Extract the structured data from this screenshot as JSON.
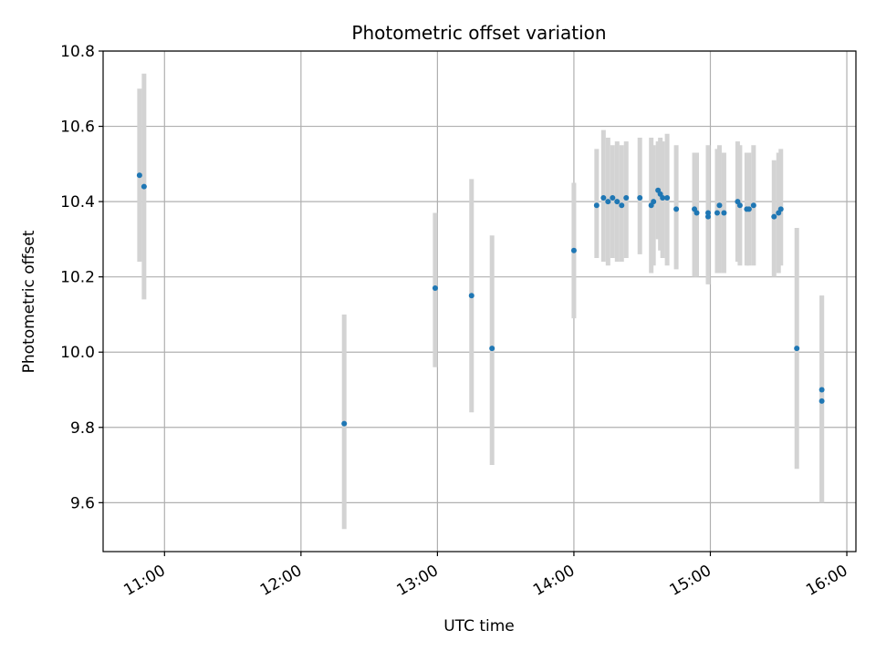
{
  "chart_data": {
    "type": "scatter",
    "title": "Photometric offset variation",
    "xlabel": "UTC time",
    "ylabel": "Photometric offset",
    "xlim": [
      "10:33",
      "16:04"
    ],
    "ylim": [
      9.47,
      10.8
    ],
    "x_ticks": [
      "11:00",
      "12:00",
      "13:00",
      "14:00",
      "15:00",
      "16:00"
    ],
    "y_ticks": [
      "9.6",
      "9.8",
      "10.0",
      "10.2",
      "10.4",
      "10.6",
      "10.8"
    ],
    "grid": true,
    "point_color": "#1f77b4",
    "errorbar_color": "#d3d3d3",
    "series": [
      {
        "points": [
          {
            "t": "10:49",
            "y": 10.47,
            "lo": 10.24,
            "hi": 10.7
          },
          {
            "t": "10:51",
            "y": 10.44,
            "lo": 10.14,
            "hi": 10.74
          },
          {
            "t": "12:19",
            "y": 9.81,
            "lo": 9.53,
            "hi": 10.1
          },
          {
            "t": "12:59",
            "y": 10.17,
            "lo": 9.96,
            "hi": 10.37
          },
          {
            "t": "13:15",
            "y": 10.15,
            "lo": 9.84,
            "hi": 10.46
          },
          {
            "t": "13:24",
            "y": 10.01,
            "lo": 9.7,
            "hi": 10.31
          },
          {
            "t": "14:00",
            "y": 10.27,
            "lo": 10.09,
            "hi": 10.45
          },
          {
            "t": "14:10",
            "y": 10.39,
            "lo": 10.25,
            "hi": 10.54
          },
          {
            "t": "14:13",
            "y": 10.41,
            "lo": 10.24,
            "hi": 10.59
          },
          {
            "t": "14:15",
            "y": 10.4,
            "lo": 10.23,
            "hi": 10.57
          },
          {
            "t": "14:17",
            "y": 10.41,
            "lo": 10.25,
            "hi": 10.55
          },
          {
            "t": "14:19",
            "y": 10.4,
            "lo": 10.24,
            "hi": 10.56
          },
          {
            "t": "14:21",
            "y": 10.39,
            "lo": 10.24,
            "hi": 10.55
          },
          {
            "t": "14:23",
            "y": 10.41,
            "lo": 10.25,
            "hi": 10.56
          },
          {
            "t": "14:29",
            "y": 10.41,
            "lo": 10.26,
            "hi": 10.57
          },
          {
            "t": "14:34",
            "y": 10.39,
            "lo": 10.21,
            "hi": 10.57
          },
          {
            "t": "14:35",
            "y": 10.4,
            "lo": 10.23,
            "hi": 10.55
          },
          {
            "t": "14:37",
            "y": 10.43,
            "lo": 10.3,
            "hi": 10.56
          },
          {
            "t": "14:38",
            "y": 10.42,
            "lo": 10.27,
            "hi": 10.57
          },
          {
            "t": "14:39",
            "y": 10.41,
            "lo": 10.25,
            "hi": 10.56
          },
          {
            "t": "14:41",
            "y": 10.41,
            "lo": 10.23,
            "hi": 10.58
          },
          {
            "t": "14:45",
            "y": 10.38,
            "lo": 10.22,
            "hi": 10.55
          },
          {
            "t": "14:53",
            "y": 10.38,
            "lo": 10.2,
            "hi": 10.53
          },
          {
            "t": "14:54",
            "y": 10.37,
            "lo": 10.2,
            "hi": 10.53
          },
          {
            "t": "14:59",
            "y": 10.36,
            "lo": 10.18,
            "hi": 10.55
          },
          {
            "t": "14:59",
            "y": 10.37,
            "lo": 10.19,
            "hi": 10.54
          },
          {
            "t": "15:03",
            "y": 10.37,
            "lo": 10.21,
            "hi": 10.54
          },
          {
            "t": "15:04",
            "y": 10.39,
            "lo": 10.21,
            "hi": 10.55
          },
          {
            "t": "15:06",
            "y": 10.37,
            "lo": 10.21,
            "hi": 10.53
          },
          {
            "t": "15:12",
            "y": 10.4,
            "lo": 10.24,
            "hi": 10.56
          },
          {
            "t": "15:13",
            "y": 10.39,
            "lo": 10.23,
            "hi": 10.55
          },
          {
            "t": "15:16",
            "y": 10.38,
            "lo": 10.23,
            "hi": 10.53
          },
          {
            "t": "15:17",
            "y": 10.38,
            "lo": 10.23,
            "hi": 10.53
          },
          {
            "t": "15:19",
            "y": 10.39,
            "lo": 10.23,
            "hi": 10.55
          },
          {
            "t": "15:28",
            "y": 10.36,
            "lo": 10.2,
            "hi": 10.51
          },
          {
            "t": "15:30",
            "y": 10.37,
            "lo": 10.21,
            "hi": 10.53
          },
          {
            "t": "15:31",
            "y": 10.38,
            "lo": 10.23,
            "hi": 10.54
          },
          {
            "t": "15:38",
            "y": 10.01,
            "lo": 9.69,
            "hi": 10.33
          },
          {
            "t": "15:49",
            "y": 9.9,
            "lo": 9.6,
            "hi": 10.15
          },
          {
            "t": "15:49",
            "y": 9.87,
            "lo": 9.6,
            "hi": 10.15
          }
        ]
      }
    ]
  }
}
